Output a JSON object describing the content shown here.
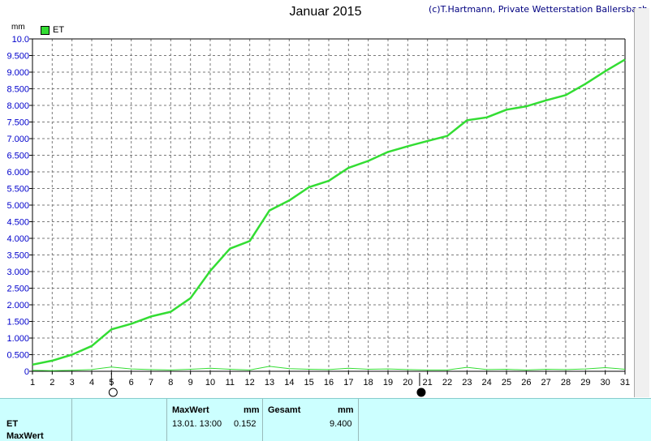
{
  "header": {
    "title": "Januar 2015",
    "copyright": "(c)T.Hartmann, Private Wetterstation Ballersbach",
    "unit": "mm"
  },
  "legend": {
    "label": "ET",
    "color": "#33dd33"
  },
  "chart_data": {
    "type": "line",
    "title": "Januar 2015",
    "ylabel": "mm",
    "xlim": [
      1,
      31
    ],
    "ylim": [
      0,
      10
    ],
    "grid": true,
    "legend_position": "top-left",
    "x_ticks": [
      "1",
      "2",
      "3",
      "4",
      "5",
      "6",
      "7",
      "8",
      "9",
      "10",
      "11",
      "12",
      "13",
      "14",
      "15",
      "16",
      "17",
      "18",
      "19",
      "20",
      "21",
      "22",
      "23",
      "24",
      "25",
      "26",
      "27",
      "28",
      "29",
      "30",
      "31"
    ],
    "y_ticks": [
      "0",
      "0.500",
      "1.000",
      "1.500",
      "2.000",
      "2.500",
      "3.000",
      "3.500",
      "4.000",
      "4.500",
      "5.000",
      "5.500",
      "6.000",
      "6.500",
      "7.000",
      "7.500",
      "8.000",
      "8.500",
      "9.000",
      "9.500",
      "10.0"
    ],
    "series": [
      {
        "name": "ET",
        "color": "#33dd33",
        "x": [
          1,
          2,
          3,
          4,
          5,
          6,
          7,
          8,
          9,
          10,
          11,
          12,
          13,
          14,
          15,
          16,
          17,
          18,
          19,
          20,
          21,
          22,
          23,
          24,
          25,
          26,
          27,
          28,
          29,
          30,
          31
        ],
        "values": [
          0.2,
          0.32,
          0.5,
          0.76,
          1.26,
          1.43,
          1.65,
          1.79,
          2.2,
          3.02,
          3.69,
          3.92,
          4.84,
          5.14,
          5.54,
          5.73,
          6.12,
          6.33,
          6.6,
          6.77,
          6.93,
          7.08,
          7.55,
          7.64,
          7.87,
          7.97,
          8.15,
          8.31,
          8.65,
          9.03,
          9.38
        ]
      },
      {
        "name": "",
        "color": "#33dd33",
        "x": [
          1,
          2,
          3,
          4,
          5,
          6,
          7,
          8,
          9,
          10,
          11,
          12,
          13,
          14,
          15,
          16,
          17,
          18,
          19,
          20,
          21,
          22,
          23,
          24,
          25,
          26,
          27,
          28,
          29,
          30,
          31
        ],
        "values": [
          0.03,
          0.02,
          0.03,
          0.05,
          0.13,
          0.07,
          0.05,
          0.04,
          0.06,
          0.09,
          0.06,
          0.04,
          0.15,
          0.08,
          0.06,
          0.05,
          0.09,
          0.06,
          0.07,
          0.05,
          0.04,
          0.04,
          0.12,
          0.05,
          0.06,
          0.04,
          0.06,
          0.05,
          0.07,
          0.11,
          0.06
        ]
      }
    ],
    "moon_phases": [
      {
        "day": 5,
        "phase": "full"
      },
      {
        "day": 20.6,
        "phase": "new"
      }
    ]
  },
  "footer": {
    "row_labels": [
      "ET",
      "MaxWert"
    ],
    "maxwert": {
      "label": "MaxWert",
      "unit": "mm",
      "datetime": "13.01.  13:00",
      "value": "0.152"
    },
    "gesamt": {
      "label": "Gesamt",
      "unit": "mm",
      "value": "9.400"
    }
  }
}
